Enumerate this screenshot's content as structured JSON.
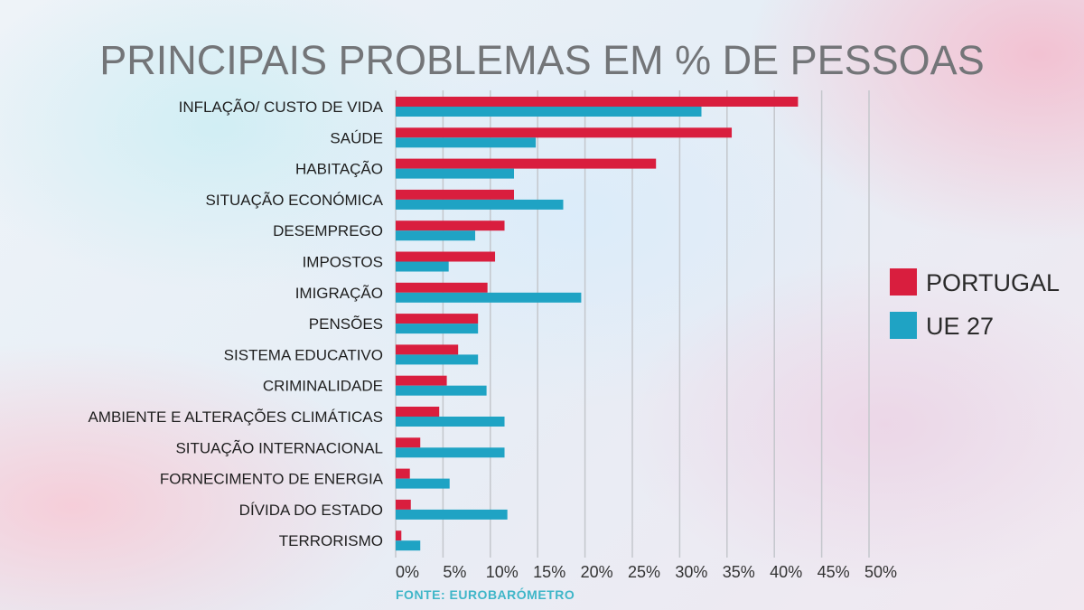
{
  "chart_data": {
    "type": "bar",
    "orientation": "horizontal",
    "title": "PRINCIPAIS PROBLEMAS EM % DE PESSOAS",
    "source": "FONTE: EUROBARÓMETRO",
    "categories": [
      "INFLAÇÃO/ CUSTO DE VIDA",
      "SAÚDE",
      "HABITAÇÃO",
      "SITUAÇÃO ECONÓMICA",
      "DESEMPREGO",
      "IMPOSTOS",
      "IMIGRAÇÃO",
      "PENSÕES",
      "SISTEMA EDUCATIVO",
      "CRIMINALIDADE",
      "AMBIENTE E ALTERAÇÕES CLIMÁTICAS",
      "SITUAÇÃO INTERNACIONAL",
      "FORNECIMENTO DE ENERGIA",
      "DÍVIDA DO ESTADO",
      "TERRORISMO"
    ],
    "series": [
      {
        "name": "PORTUGAL",
        "color": "#d91e3e",
        "values": [
          42.5,
          35.5,
          27.5,
          12.5,
          11.5,
          10.5,
          9.7,
          8.7,
          6.6,
          5.4,
          4.6,
          2.6,
          1.5,
          1.6,
          0.6
        ]
      },
      {
        "name": "UE 27",
        "color": "#1fa3c4",
        "values": [
          32.3,
          14.8,
          12.5,
          17.7,
          8.4,
          5.6,
          19.6,
          8.7,
          8.7,
          9.6,
          11.5,
          11.5,
          5.7,
          11.8,
          2.6
        ]
      }
    ],
    "x_ticks": [
      "0%",
      "5%",
      "10%",
      "15%",
      "20%",
      "25%",
      "30%",
      "35%",
      "40%",
      "45%",
      "50%"
    ],
    "xlim": [
      0,
      50
    ],
    "grid": true,
    "legend_position": "right"
  }
}
